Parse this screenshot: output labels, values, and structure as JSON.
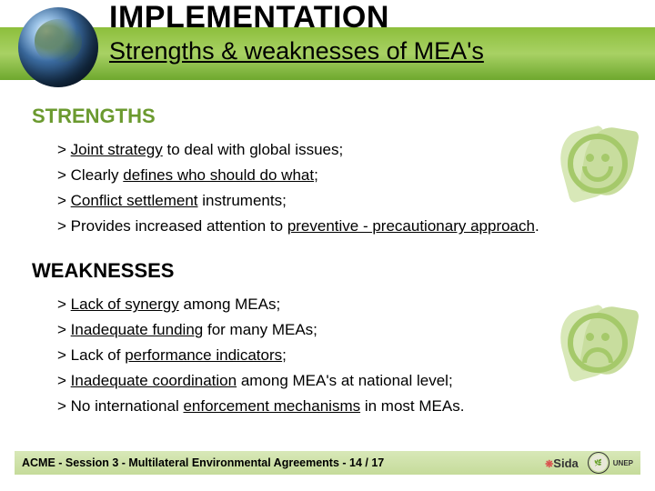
{
  "header": {
    "title": "IMPLEMENTATION",
    "subtitle": "Strengths & weaknesses of MEA's"
  },
  "strengths": {
    "heading": "STRENGTHS",
    "heading_color": "#6b9a2f",
    "items": [
      {
        "prefix": "> ",
        "under1": "Joint strategy",
        "mid": " to deal with global issues;"
      },
      {
        "prefix": "> ",
        "plain1": "Clearly ",
        "under1": "defines who should do what",
        "mid": ";"
      },
      {
        "prefix": "> ",
        "under1": "Conflict settlement",
        "mid": " instruments;"
      },
      {
        "prefix": "> ",
        "plain1": "Provides increased attention to ",
        "under1": "preventive - precautionary approach",
        "mid": "."
      }
    ]
  },
  "weaknesses": {
    "heading": "WEAKNESSES",
    "items": [
      {
        "prefix": "> ",
        "under1": "Lack of synergy",
        "mid": " among MEAs;"
      },
      {
        "prefix": "> ",
        "under1": "Inadequate funding",
        "mid": " for many MEAs;"
      },
      {
        "prefix": "> ",
        "plain1": "Lack of ",
        "under1": "performance indicators",
        "mid": ";"
      },
      {
        "prefix": "> ",
        "under1": "Inadequate coordination",
        "mid": " among MEA's at national level;"
      },
      {
        "prefix": "> ",
        "plain1": "No international ",
        "under1": "enforcement mechanisms",
        "mid": " in most MEAs."
      }
    ]
  },
  "footer": {
    "text": "ACME - Session 3 - Multilateral Environmental Agreements - 14 / 17",
    "sida": "Sida",
    "unep": "UNEP"
  },
  "colors": {
    "band": "#8dbf3c",
    "leaf_light": "#d8e8b8",
    "leaf_mid": "#c8dd9e",
    "face": "#a5c96a"
  }
}
